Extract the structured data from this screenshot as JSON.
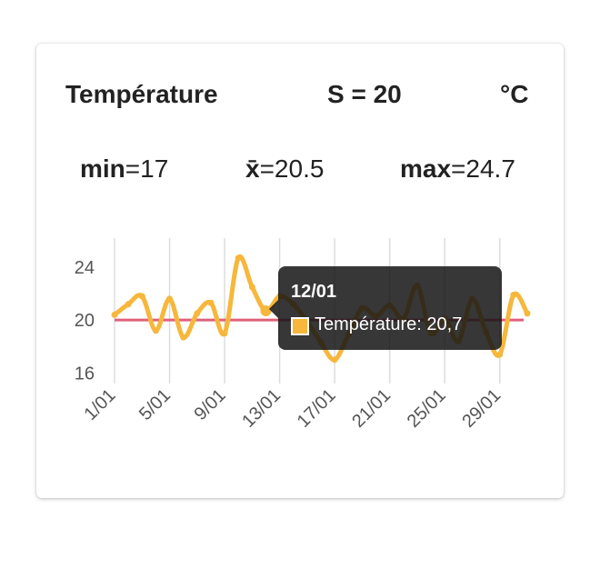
{
  "header": {
    "title": "Température",
    "summary": "S = 20",
    "unit": "°C"
  },
  "stats": {
    "min_label": "min",
    "min_value": "=17",
    "mean_label": "x̄",
    "mean_value": "=20.5",
    "max_label": "max",
    "max_value": "=24.7"
  },
  "tooltip": {
    "title": "12/01",
    "label": "Température: 20,7"
  },
  "colors": {
    "series": "#f6b73c",
    "reference": "#e0607a",
    "grid": "#dddddd"
  },
  "chart_data": {
    "type": "line",
    "y_ticks": [
      "24",
      "20",
      "16"
    ],
    "y_tick_values": [
      24,
      20,
      16
    ],
    "ylim": [
      15.2,
      26.2
    ],
    "x_tick_labels": [
      "1/01",
      "5/01",
      "9/01",
      "13/01",
      "17/01",
      "21/01",
      "25/01",
      "29/01"
    ],
    "categories": [
      "1/01",
      "2/01",
      "3/01",
      "4/01",
      "5/01",
      "6/01",
      "7/01",
      "8/01",
      "9/01",
      "10/01",
      "11/01",
      "12/01",
      "13/01",
      "14/01",
      "15/01",
      "16/01",
      "17/01",
      "18/01",
      "19/01",
      "20/01",
      "21/01",
      "22/01",
      "23/01",
      "24/01",
      "25/01",
      "26/01",
      "27/01",
      "28/01",
      "29/01",
      "30/01",
      "31/01"
    ],
    "series": [
      {
        "name": "Température",
        "values": [
          20.4,
          21.2,
          21.8,
          19.2,
          21.6,
          18.7,
          20.5,
          21.3,
          19.0,
          24.7,
          22.5,
          20.7,
          21.8,
          21.2,
          19.9,
          18.3,
          17.0,
          18.9,
          20.9,
          20.3,
          21.1,
          20.1,
          22.6,
          19.0,
          20.1,
          18.4,
          21.6,
          19.1,
          17.4,
          21.9,
          20.5
        ]
      }
    ],
    "reference_line": 20
  }
}
